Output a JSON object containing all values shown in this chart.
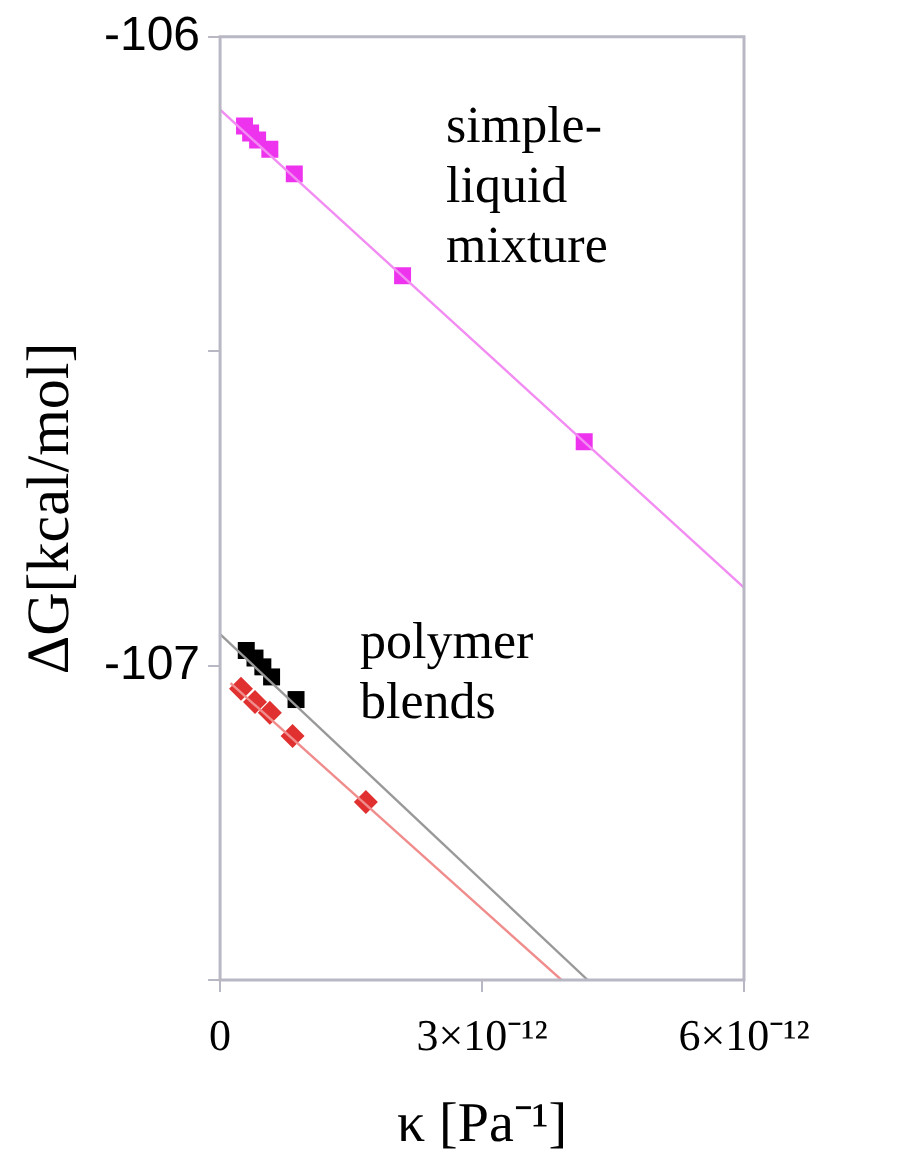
{
  "chart_data": {
    "type": "scatter",
    "xlabel": "κ [Pa⁻¹]",
    "ylabel": "ΔG[kcal/mol]",
    "xlim": [
      0,
      6e-12
    ],
    "xticks": [
      {
        "value": 0,
        "label": "0"
      },
      {
        "value": 3e-12,
        "label": "3×10⁻¹²"
      },
      {
        "value": 6e-12,
        "label": "6×10⁻¹²"
      }
    ],
    "ylim": [
      -107.5,
      -106
    ],
    "yticks": [
      {
        "value": -106,
        "label": "-106"
      },
      {
        "value": -106.5,
        "label": null
      },
      {
        "value": -107,
        "label": "-107"
      },
      {
        "value": -107.5,
        "label": null
      }
    ],
    "grid": false,
    "legend": false,
    "annotations": [
      "simple-liquid mixture",
      "polymer blends"
    ],
    "series": [
      {
        "type": "line",
        "color": "#f28cf2",
        "marker": "none",
        "x": [
          0,
          6e-12
        ],
        "values": [
          -106.116,
          -106.876
        ]
      },
      {
        "type": "line",
        "color": "#999999",
        "marker": "none",
        "x": [
          0,
          4.21e-12
        ],
        "values": [
          -106.95,
          -107.5
        ]
      },
      {
        "type": "line",
        "color": "#f08c8c",
        "marker": "none",
        "x": [
          1.2e-13,
          3.91e-12
        ],
        "values": [
          -107.028,
          -107.5
        ]
      },
      {
        "color": "#ee33ee",
        "marker": "square",
        "x": [
          2.8e-13,
          3.5e-13,
          4.3e-13,
          5.7e-13,
          8.5e-13,
          2.09e-12,
          4.17e-12
        ],
        "values": [
          -106.142,
          -106.153,
          -106.164,
          -106.179,
          -106.218,
          -106.38,
          -106.644
        ]
      },
      {
        "color": "#000000",
        "marker": "square",
        "x": [
          3e-13,
          4e-13,
          4.9e-13,
          5.9e-13,
          8.7e-13
        ],
        "values": [
          -106.976,
          -106.988,
          -107.002,
          -107.018,
          -107.054
        ]
      },
      {
        "color": "#e03030",
        "marker": "diamond",
        "x": [
          2.4e-13,
          4e-13,
          5.7e-13,
          8.3e-13,
          1.67e-12
        ],
        "values": [
          -107.037,
          -107.058,
          -107.075,
          -107.112,
          -107.217
        ]
      }
    ]
  }
}
